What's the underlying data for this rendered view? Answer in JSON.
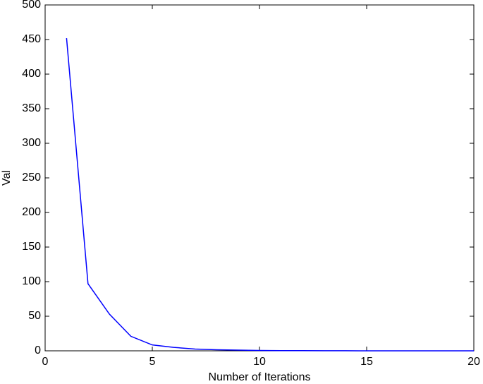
{
  "chart_data": {
    "type": "line",
    "x_label": "Number of Iterations",
    "y_label": "Val",
    "x": [
      1,
      2,
      3,
      4,
      5,
      6,
      7,
      8,
      9,
      10,
      11,
      12,
      13,
      14,
      15,
      16,
      17,
      18,
      19,
      20
    ],
    "values": [
      452,
      97,
      53,
      21,
      8.5,
      5,
      2.5,
      1.5,
      1,
      0.5,
      0.3,
      0.2,
      0.1,
      0.1,
      0,
      0,
      0,
      0,
      0,
      0
    ],
    "color": "#0000ff",
    "xlim": [
      0,
      20
    ],
    "xticks": [
      0,
      5,
      10,
      15,
      20
    ],
    "ylim": [
      0,
      500
    ],
    "yticks": [
      0,
      50,
      100,
      150,
      200,
      250,
      300,
      350,
      400,
      450,
      500
    ],
    "grid": false
  }
}
